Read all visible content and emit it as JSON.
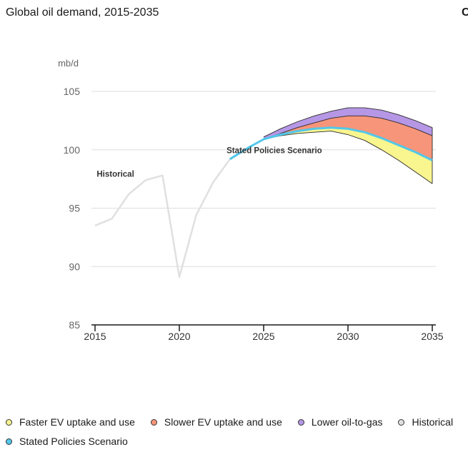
{
  "title": "Global oil demand, 2015-2035",
  "corner_glyph": "C",
  "colors": {
    "faster_ev": "#f9f58f",
    "slower_ev": "#f7957a",
    "lower_oil_to_gas": "#b697e6",
    "historical": "#e0e0e0",
    "steps": "#51c7ea",
    "grid": "#dedede",
    "axis": "#1a1a1a",
    "band_edge": "#2a2a2a"
  },
  "legend": [
    {
      "label": "Faster EV uptake and use",
      "color": "#f9f58f"
    },
    {
      "label": "Slower EV uptake and use",
      "color": "#f7957a"
    },
    {
      "label": "Lower oil-to-gas",
      "color": "#b697e6"
    },
    {
      "label": "Historical",
      "color": "#e0e0e0"
    },
    {
      "label": "Stated Policies Scenario",
      "color": "#51c7ea"
    }
  ],
  "chart_data": {
    "type": "area",
    "title": "Global oil demand, 2015-2035",
    "ylabel": "mb/d",
    "xlim": [
      2015,
      2035
    ],
    "ylim": [
      85,
      105
    ],
    "x_ticks": [
      2015,
      2020,
      2025,
      2030,
      2035
    ],
    "y_ticks": [
      85,
      90,
      95,
      100,
      105
    ],
    "grid": true,
    "annotations": [
      {
        "text": "Historical",
        "x": 2015.1,
        "y": 97.7
      },
      {
        "text": "Stated Policies Scenario",
        "x": 2022.8,
        "y": 99.7
      }
    ],
    "series": [
      {
        "name": "Historical",
        "x": [
          2015,
          2016,
          2017,
          2018,
          2019,
          2020,
          2021,
          2022,
          2023
        ],
        "values": [
          93.5,
          94.1,
          96.2,
          97.4,
          97.8,
          89.1,
          94.4,
          97.2,
          99.2
        ]
      },
      {
        "name": "Stated Policies Scenario",
        "x": [
          2023,
          2024,
          2025,
          2026,
          2027,
          2028,
          2029,
          2030,
          2031,
          2032,
          2033,
          2034,
          2035
        ],
        "values": [
          99.2,
          100.1,
          100.9,
          101.3,
          101.6,
          101.8,
          101.9,
          101.8,
          101.5,
          101.0,
          100.4,
          99.8,
          99.1
        ]
      },
      {
        "name": "Faster EV uptake and use",
        "x": [
          2025,
          2026,
          2027,
          2028,
          2029,
          2030,
          2031,
          2032,
          2033,
          2034,
          2035
        ],
        "values": [
          100.9,
          101.2,
          101.4,
          101.5,
          101.6,
          101.3,
          100.8,
          100.0,
          99.1,
          98.1,
          97.1
        ]
      },
      {
        "name": "Slower EV uptake and use",
        "x": [
          2025,
          2026,
          2027,
          2028,
          2029,
          2030,
          2031,
          2032,
          2033,
          2034,
          2035
        ],
        "values": [
          100.9,
          101.4,
          101.9,
          102.3,
          102.7,
          102.9,
          102.9,
          102.7,
          102.3,
          101.8,
          101.2
        ]
      },
      {
        "name": "Lower oil-to-gas",
        "x": [
          2025,
          2026,
          2027,
          2028,
          2029,
          2030,
          2031,
          2032,
          2033,
          2034,
          2035
        ],
        "values": [
          101.1,
          101.8,
          102.4,
          102.9,
          103.3,
          103.6,
          103.6,
          103.4,
          103.0,
          102.5,
          101.9
        ]
      }
    ]
  }
}
